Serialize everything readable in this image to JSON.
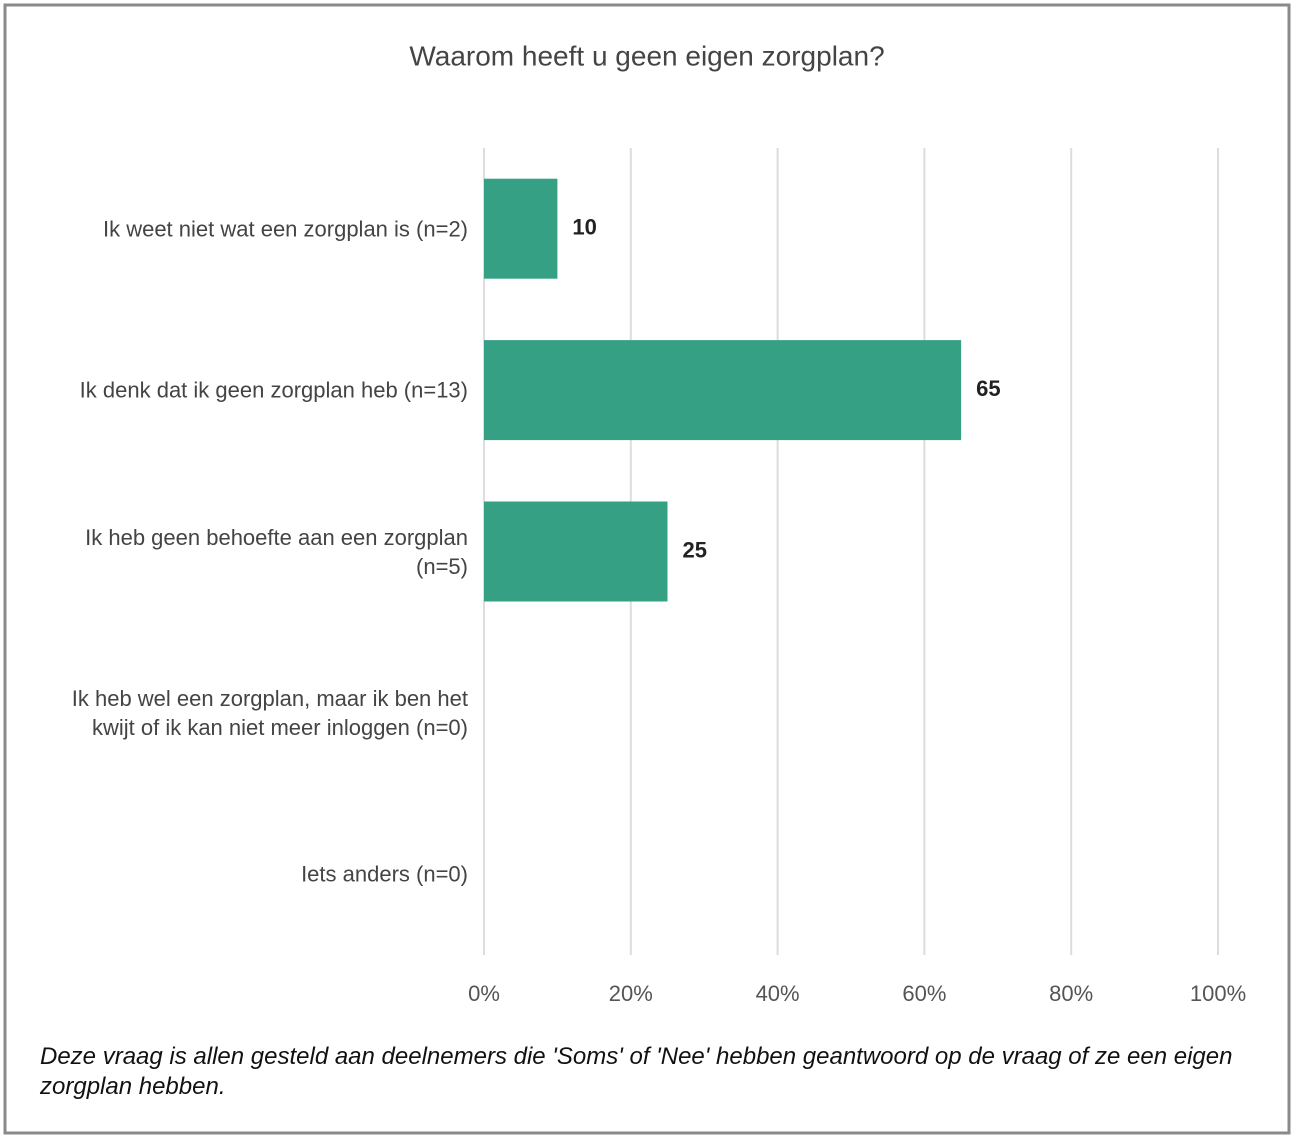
{
  "chart_data": {
    "type": "barh",
    "title": "Waarom heeft u geen eigen zorgplan?",
    "categories": [
      "Ik weet niet wat een zorgplan is (n=2)",
      "Ik denk dat ik geen zorgplan heb (n=13)",
      "Ik heb geen behoefte aan een zorgplan (n=5)",
      "Ik heb wel een zorgplan, maar ik ben het kwijt of ik kan niet meer inloggen (n=0)",
      "Iets anders (n=0)"
    ],
    "values": [
      10,
      65,
      25,
      0,
      0
    ],
    "value_labels": [
      "10",
      "65",
      "25",
      null,
      null
    ],
    "color": "#36a085",
    "xlim": [
      0,
      100
    ],
    "xticks": [
      {
        "value": 0,
        "label": "0%"
      },
      {
        "value": 20,
        "label": "20%"
      },
      {
        "value": 40,
        "label": "40%"
      },
      {
        "value": 60,
        "label": "60%"
      },
      {
        "value": 80,
        "label": "80%"
      },
      {
        "value": 100,
        "label": "100%"
      }
    ],
    "grid": true
  },
  "footnote": "Deze vraag is allen gesteld aan deelnemers die 'Soms' of 'Nee' hebben geantwoord op de vraag of ze een eigen zorgplan hebben."
}
